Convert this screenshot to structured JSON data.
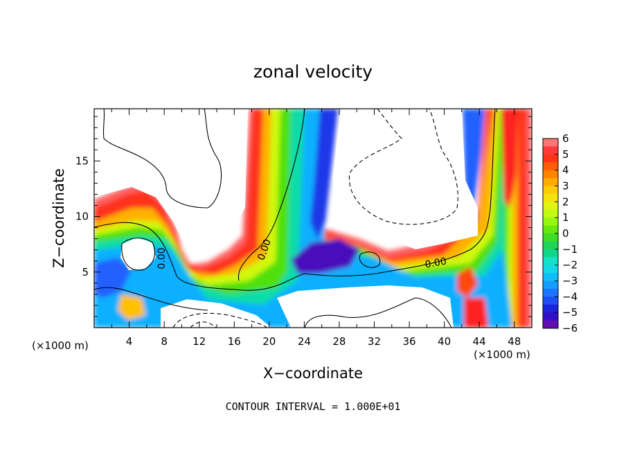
{
  "chart_data": {
    "type": "heatmap",
    "title": "zonal velocity",
    "xlabel": "X−coordinate",
    "ylabel": "Z−coordinate",
    "x_unit_left": "(×1000 m)",
    "x_unit_right": "(×1000 m)",
    "x_ticks": [
      "4",
      "8",
      "12",
      "16",
      "20",
      "24",
      "28",
      "32",
      "36",
      "40",
      "44",
      "48"
    ],
    "y_ticks": [
      "5",
      "10",
      "15"
    ],
    "xlim": [
      0,
      50000
    ],
    "ylim": [
      0,
      19700
    ],
    "contour_interval_text": "CONTOUR INTERVAL = 1.000E+01",
    "contour_labels": [
      "0.00",
      "0.00",
      "0.00"
    ],
    "colorbar": {
      "ticks": [
        "6",
        "5",
        "4",
        "3",
        "2",
        "1",
        "0",
        "−1",
        "−2",
        "−3",
        "−4",
        "−5",
        "−6"
      ],
      "range": [
        -6,
        6
      ]
    },
    "color_stops": [
      {
        "v": -6,
        "color": "#7a0aa8"
      },
      {
        "v": -5,
        "color": "#1a10d0"
      },
      {
        "v": -4,
        "color": "#2060ff"
      },
      {
        "v": -3,
        "color": "#10b0ff"
      },
      {
        "v": -2,
        "color": "#10e8e0"
      },
      {
        "v": -1,
        "color": "#10d070"
      },
      {
        "v": 0,
        "color": "#50e010"
      },
      {
        "v": 1,
        "color": "#b0ff10"
      },
      {
        "v": 2,
        "color": "#f0f010"
      },
      {
        "v": 3,
        "color": "#ffc000"
      },
      {
        "v": 4,
        "color": "#ff7000"
      },
      {
        "v": 5,
        "color": "#ff2020"
      },
      {
        "v": 6,
        "color": "#ff9090"
      }
    ],
    "note": "Approximate field: bands of strong zonal velocity; white areas are values outside the ±6 colour range."
  }
}
